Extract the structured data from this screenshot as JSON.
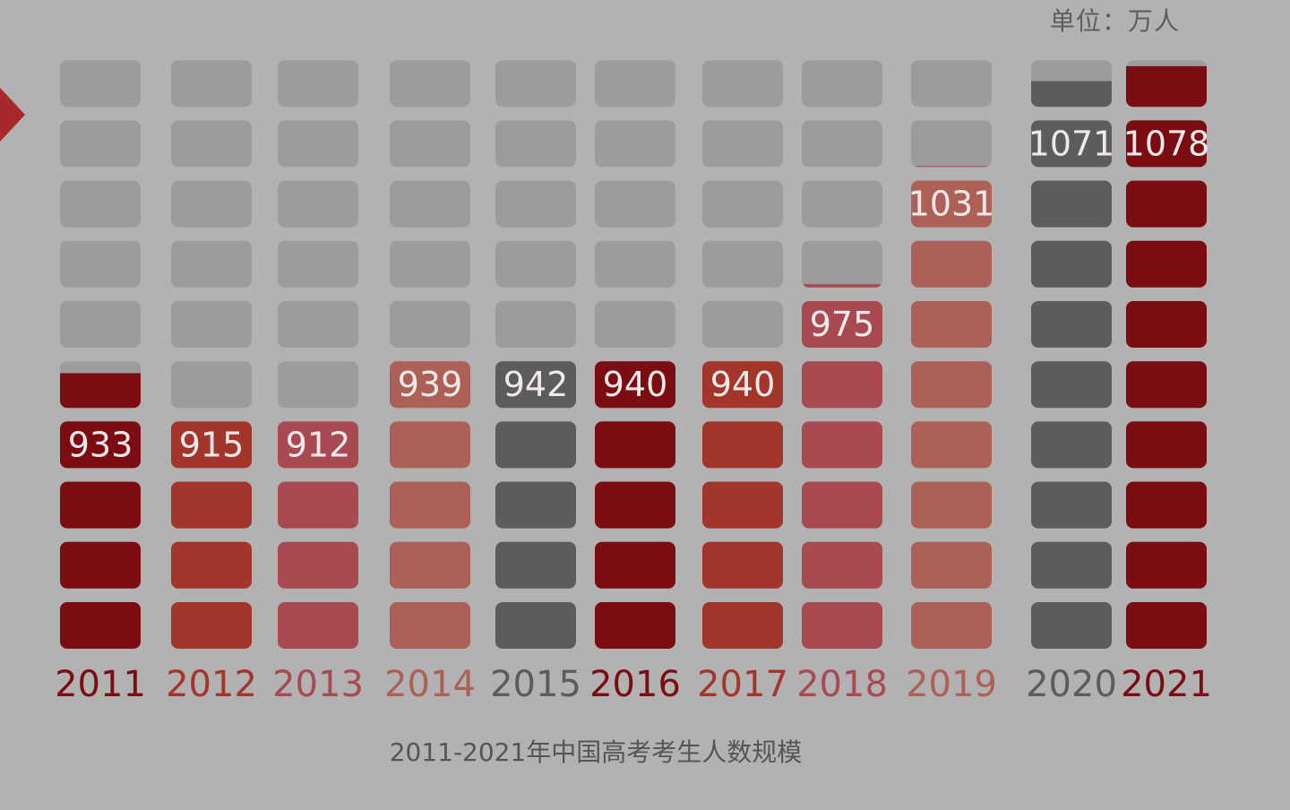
{
  "unit_label": "单位：万人",
  "caption": "2011-2021年中国高考考生人数规模",
  "chart_data": {
    "type": "bar",
    "title": "2011-2021年中国高考考生人数规模",
    "subtitle": "",
    "ylabel": "单位：万人",
    "categories": [
      "2011",
      "2012",
      "2013",
      "2014",
      "2015",
      "2016",
      "2017",
      "2018",
      "2019",
      "2020",
      "2021"
    ],
    "values": [
      933,
      915,
      912,
      939,
      942,
      940,
      940,
      975,
      1031,
      1071,
      1078
    ],
    "value_labels": [
      "933",
      "915",
      "912",
      "939",
      "942",
      "940",
      "940",
      "975",
      "1031",
      "1071",
      "1078"
    ],
    "colors": [
      "#7a0c12",
      "#a3352a",
      "#a94a52",
      "#ad6055",
      "#5c5c5c",
      "#7a0c12",
      "#a3352a",
      "#a94a52",
      "#ad6055",
      "#5c5c5c",
      "#7a0c12"
    ],
    "label_colors": [
      "#7a0c12",
      "#a3352a",
      "#a94a52",
      "#ad6055",
      "#5c5c5c",
      "#7a0c12",
      "#a3352a",
      "#a94a52",
      "#ad6055",
      "#5c5c5c",
      "#7a0c12"
    ],
    "empty_block_color": "#9c9c9c",
    "blocks_per_column": 10
  }
}
